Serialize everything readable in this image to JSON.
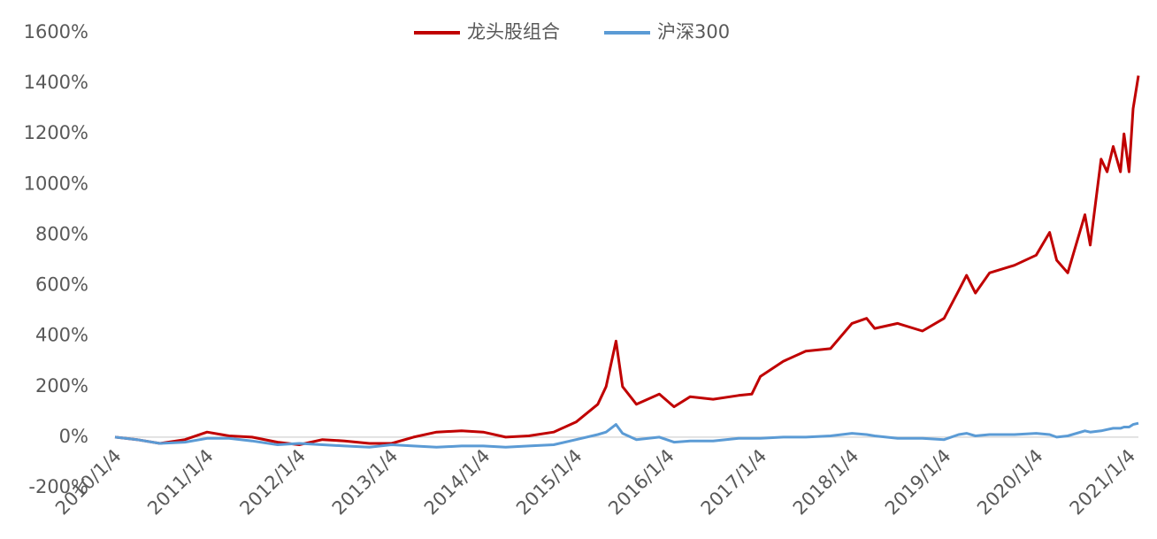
{
  "chart_data": {
    "type": "line",
    "x": [
      "2010/1/4",
      "2010/4/1",
      "2010/7/1",
      "2010/10/8",
      "2011/1/4",
      "2011/4/1",
      "2011/7/1",
      "2011/10/10",
      "2012/1/4",
      "2012/4/5",
      "2012/7/2",
      "2012/10/8",
      "2013/1/4",
      "2013/4/1",
      "2013/7/1",
      "2013/10/8",
      "2014/1/2",
      "2014/4/1",
      "2014/7/1",
      "2014/10/8",
      "2015/1/5",
      "2015/4/1",
      "2015/5/4",
      "2015/6/12",
      "2015/7/8",
      "2015/9/1",
      "2015/12/1",
      "2016/1/28",
      "2016/4/1",
      "2016/7/1",
      "2016/10/10",
      "2016/12/1",
      "2017/1/4",
      "2017/4/5",
      "2017/7/3",
      "2017/10/9",
      "2018/1/2",
      "2018/3/1",
      "2018/4/2",
      "2018/7/2",
      "2018/10/8",
      "2019/1/2",
      "2019/3/1",
      "2019/4/1",
      "2019/5/6",
      "2019/7/1",
      "2019/10/8",
      "2020/1/2",
      "2020/2/24",
      "2020/3/23",
      "2020/5/6",
      "2020/7/13",
      "2020/8/3",
      "2020/9/15",
      "2020/10/9",
      "2020/11/2",
      "2020/12/1",
      "2020/12/15",
      "2021/1/4",
      "2021/1/20",
      "2021/2/10"
    ],
    "series": [
      {
        "name": "龙头股组合",
        "color": "#c00000",
        "values": [
          0,
          -10,
          -25,
          -10,
          20,
          5,
          0,
          -20,
          -30,
          -10,
          -15,
          -25,
          -25,
          0,
          20,
          25,
          20,
          0,
          5,
          20,
          60,
          130,
          200,
          380,
          200,
          130,
          170,
          120,
          160,
          150,
          165,
          170,
          240,
          300,
          340,
          350,
          450,
          470,
          430,
          450,
          420,
          470,
          580,
          640,
          570,
          650,
          680,
          720,
          810,
          700,
          650,
          880,
          760,
          1100,
          1050,
          1150,
          1050,
          1200,
          1050,
          1300,
          1430
        ]
      },
      {
        "name": "沪深300",
        "color": "#5b9bd5",
        "values": [
          0,
          -10,
          -25,
          -20,
          -5,
          -5,
          -15,
          -30,
          -25,
          -30,
          -35,
          -40,
          -30,
          -35,
          -40,
          -35,
          -35,
          -40,
          -35,
          -30,
          -10,
          10,
          20,
          50,
          15,
          -10,
          0,
          -20,
          -15,
          -15,
          -5,
          -5,
          -5,
          0,
          0,
          5,
          15,
          10,
          5,
          -5,
          -5,
          -10,
          10,
          15,
          5,
          10,
          10,
          15,
          10,
          0,
          5,
          25,
          20,
          25,
          30,
          35,
          35,
          40,
          40,
          50,
          55
        ]
      }
    ],
    "xlim": [
      "2010/1/4",
      "2021/2/10"
    ],
    "xticks": [
      "2010/1/4",
      "2011/1/4",
      "2012/1/4",
      "2013/1/4",
      "2014/1/4",
      "2015/1/4",
      "2016/1/4",
      "2017/1/4",
      "2018/1/4",
      "2019/1/4",
      "2020/1/4",
      "2021/1/4"
    ],
    "ylim": [
      -200,
      1600
    ],
    "yticks": [
      {
        "value": -200,
        "label": "-200%"
      },
      {
        "value": 0,
        "label": "0%"
      },
      {
        "value": 200,
        "label": "200%"
      },
      {
        "value": 400,
        "label": "400%"
      },
      {
        "value": 600,
        "label": "600%"
      },
      {
        "value": 800,
        "label": "800%"
      },
      {
        "value": 1000,
        "label": "1000%"
      },
      {
        "value": 1200,
        "label": "1200%"
      },
      {
        "value": 1400,
        "label": "1400%"
      },
      {
        "value": 1600,
        "label": "1600%"
      }
    ],
    "legend": "top"
  }
}
